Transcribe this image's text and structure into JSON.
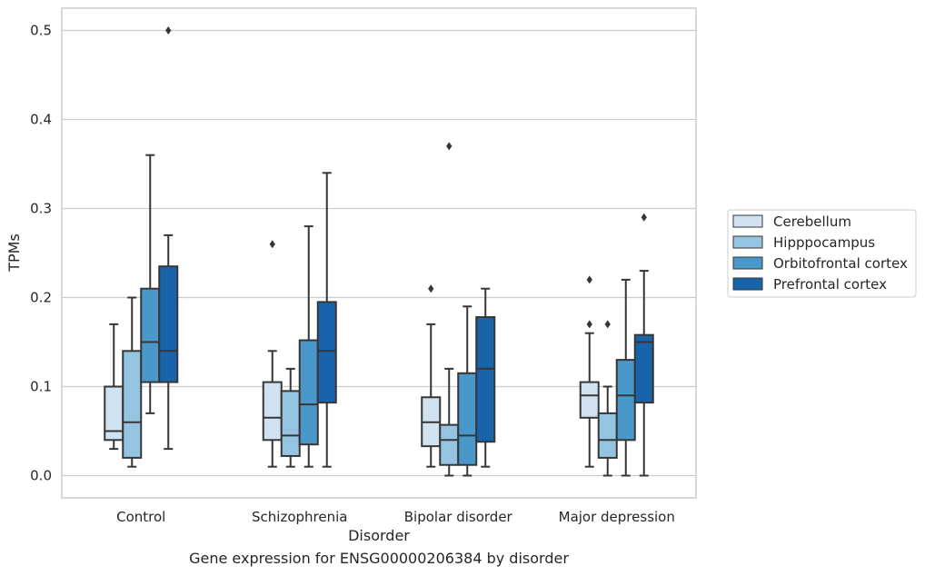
{
  "caption": "Gene expression for ENSG00000206384 by disorder",
  "chart_data": {
    "type": "boxplot",
    "title": "",
    "xlabel": "Disorder",
    "ylabel": "TPMs",
    "ylim": [
      -0.025,
      0.525
    ],
    "yticks": [
      0.0,
      0.1,
      0.2,
      0.3,
      0.4,
      0.5
    ],
    "ytick_labels": [
      "0.0",
      "0.1",
      "0.2",
      "0.3",
      "0.4",
      "0.5"
    ],
    "grid": true,
    "legend_position": "right",
    "categories": [
      "Control",
      "Schizophrenia",
      "Bipolar disorder",
      "Major depression"
    ],
    "series": [
      {
        "name": "Cerebellum",
        "color": "#d0e1f2",
        "boxes": [
          {
            "whislo": 0.03,
            "q1": 0.04,
            "med": 0.05,
            "q3": 0.1,
            "whishi": 0.17,
            "fliers": []
          },
          {
            "whislo": 0.01,
            "q1": 0.04,
            "med": 0.065,
            "q3": 0.105,
            "whishi": 0.14,
            "fliers": [
              0.26
            ]
          },
          {
            "whislo": 0.01,
            "q1": 0.033,
            "med": 0.06,
            "q3": 0.088,
            "whishi": 0.17,
            "fliers": [
              0.21
            ]
          },
          {
            "whislo": 0.01,
            "q1": 0.065,
            "med": 0.09,
            "q3": 0.105,
            "whishi": 0.16,
            "fliers": [
              0.17,
              0.22
            ]
          }
        ]
      },
      {
        "name": "Hipppocampus",
        "color": "#94c4df",
        "boxes": [
          {
            "whislo": 0.01,
            "q1": 0.02,
            "med": 0.06,
            "q3": 0.14,
            "whishi": 0.2,
            "fliers": []
          },
          {
            "whislo": 0.01,
            "q1": 0.022,
            "med": 0.045,
            "q3": 0.095,
            "whishi": 0.12,
            "fliers": []
          },
          {
            "whislo": 0.0,
            "q1": 0.012,
            "med": 0.04,
            "q3": 0.057,
            "whishi": 0.12,
            "fliers": [
              0.37
            ]
          },
          {
            "whislo": 0.0,
            "q1": 0.02,
            "med": 0.04,
            "q3": 0.07,
            "whishi": 0.1,
            "fliers": [
              0.17
            ]
          }
        ]
      },
      {
        "name": "Orbitofrontal cortex",
        "color": "#4a98c9",
        "boxes": [
          {
            "whislo": 0.07,
            "q1": 0.105,
            "med": 0.15,
            "q3": 0.21,
            "whishi": 0.36,
            "fliers": []
          },
          {
            "whislo": 0.01,
            "q1": 0.035,
            "med": 0.08,
            "q3": 0.152,
            "whishi": 0.28,
            "fliers": []
          },
          {
            "whislo": 0.0,
            "q1": 0.012,
            "med": 0.045,
            "q3": 0.115,
            "whishi": 0.19,
            "fliers": []
          },
          {
            "whislo": 0.0,
            "q1": 0.04,
            "med": 0.09,
            "q3": 0.13,
            "whishi": 0.22,
            "fliers": []
          }
        ]
      },
      {
        "name": "Prefrontal cortex",
        "color": "#1764ab",
        "boxes": [
          {
            "whislo": 0.03,
            "q1": 0.105,
            "med": 0.14,
            "q3": 0.235,
            "whishi": 0.27,
            "fliers": [
              0.5
            ]
          },
          {
            "whislo": 0.01,
            "q1": 0.082,
            "med": 0.14,
            "q3": 0.195,
            "whishi": 0.34,
            "fliers": []
          },
          {
            "whislo": 0.01,
            "q1": 0.038,
            "med": 0.12,
            "q3": 0.178,
            "whishi": 0.21,
            "fliers": []
          },
          {
            "whislo": 0.0,
            "q1": 0.082,
            "med": 0.15,
            "q3": 0.158,
            "whishi": 0.23,
            "fliers": [
              0.29
            ]
          }
        ]
      }
    ],
    "box_edge_color": "#363636",
    "grid_color": "#cccccc",
    "frame_color": "#cccccc"
  }
}
